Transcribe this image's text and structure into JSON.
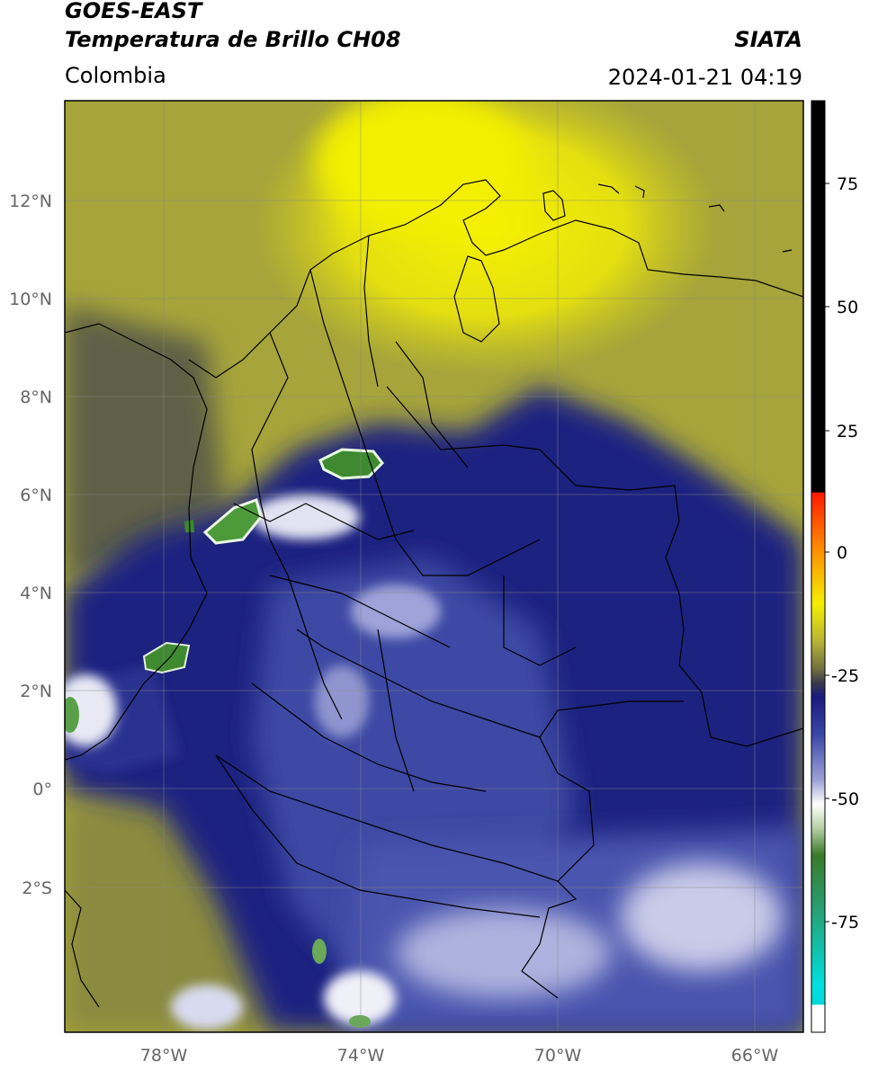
{
  "header": {
    "satellite": "GOES-EAST",
    "product": "Temperatura de Brillo CH08",
    "organization": "SIATA",
    "region": "Colombia",
    "timestamp": "2024-01-21 04:19"
  },
  "map": {
    "lon_range": [
      -80,
      -65
    ],
    "lat_range": [
      -4.9,
      14.1
    ],
    "lon_ticks": [
      "78°W",
      "74°W",
      "70°W",
      "66°W"
    ],
    "lat_ticks": [
      "12°N",
      "10°N",
      "8°N",
      "6°N",
      "4°N",
      "2°N",
      "0°",
      "2°S"
    ],
    "grid": true
  },
  "colorbar": {
    "ticks": [
      "75",
      "50",
      "25",
      "0",
      "-25",
      "-50",
      "-75"
    ],
    "range": [
      -92,
      90
    ]
  },
  "colors": {
    "warm_yellow": "#f3ef00",
    "olive": "#a6a436",
    "navy": "#1a237e",
    "mid_blue": "#3e4aa6",
    "light_lavender": "#c9cbe8",
    "green_cloud": "#3a8a2a",
    "cyan": "#00d8d8",
    "red": "#ff2a00",
    "black": "#000000"
  }
}
